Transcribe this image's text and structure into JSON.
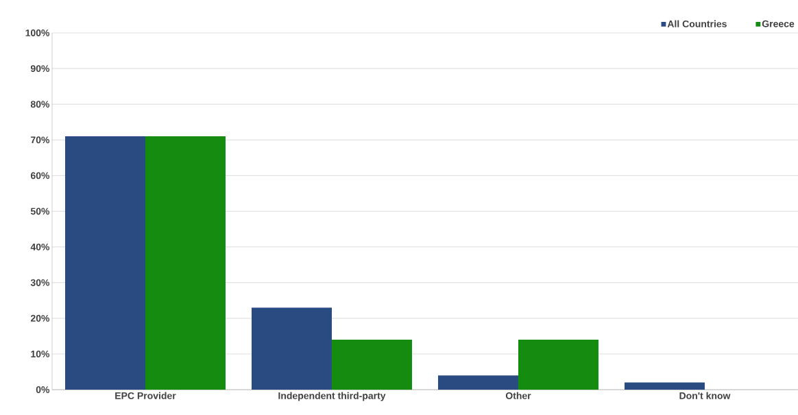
{
  "chart_data": {
    "type": "bar",
    "categories": [
      "EPC Provider",
      "Independent third-party",
      "Other",
      "Don't know"
    ],
    "series": [
      {
        "name": "All Countries",
        "color": "#2a4a82",
        "values": [
          71,
          23,
          4,
          2
        ]
      },
      {
        "name": "Greece",
        "color": "#138c10",
        "values": [
          71,
          14,
          14,
          0
        ]
      }
    ],
    "ylim": [
      0,
      100
    ],
    "yticks": [
      {
        "value": 0,
        "label": "0%"
      },
      {
        "value": 10,
        "label": "10%"
      },
      {
        "value": 20,
        "label": "20%"
      },
      {
        "value": 30,
        "label": "30%"
      },
      {
        "value": 40,
        "label": "40%"
      },
      {
        "value": 50,
        "label": "50%"
      },
      {
        "value": 60,
        "label": "60%"
      },
      {
        "value": 70,
        "label": "70%"
      },
      {
        "value": 80,
        "label": "80%"
      },
      {
        "value": 90,
        "label": "90%"
      },
      {
        "value": 100,
        "label": "100%"
      }
    ],
    "grid": "y",
    "legend": "top right"
  }
}
